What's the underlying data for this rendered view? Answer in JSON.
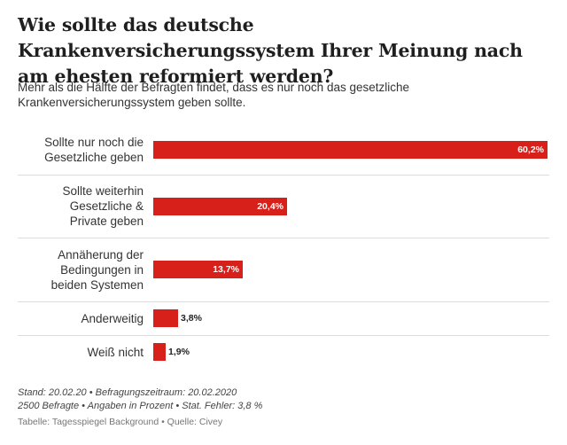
{
  "title": "Wie sollte das deutsche Krankenversicherungssystem Ihrer Meinung nach am ehesten reformiert werden?",
  "subtitle": "Mehr als die Hälfte der Befragten findet, dass es nur noch das gesetzliche Krankenversicherungssystem geben sollte.",
  "chart_data": {
    "type": "bar",
    "orientation": "horizontal",
    "title": "Wie sollte das deutsche Krankenversicherungssystem Ihrer Meinung nach am ehesten reformiert werden?",
    "categories": [
      "Sollte nur noch die Gesetzliche geben",
      "Sollte weiterhin Gesetzliche & Private geben",
      "Annäherung der Bedingungen in beiden Systemen",
      "Anderweitig",
      "Weiß nicht"
    ],
    "values": [
      60.2,
      20.4,
      13.7,
      3.8,
      1.9
    ],
    "value_labels": [
      "60,2%",
      "20,4%",
      "13,7%",
      "3,8%",
      "1,9%"
    ],
    "xlim": [
      0,
      60.2
    ],
    "unit": "%",
    "bar_color": "#d7201a"
  },
  "notes": {
    "line1": "Stand: 20.02.20 • Befragungszeitraum: 20.02.2020",
    "line2": "2500 Befragte • Angaben in Prozent • Stat. Fehler: 3,8 %"
  },
  "source": "Tabelle: Tagesspiegel Background • Quelle: Civey"
}
